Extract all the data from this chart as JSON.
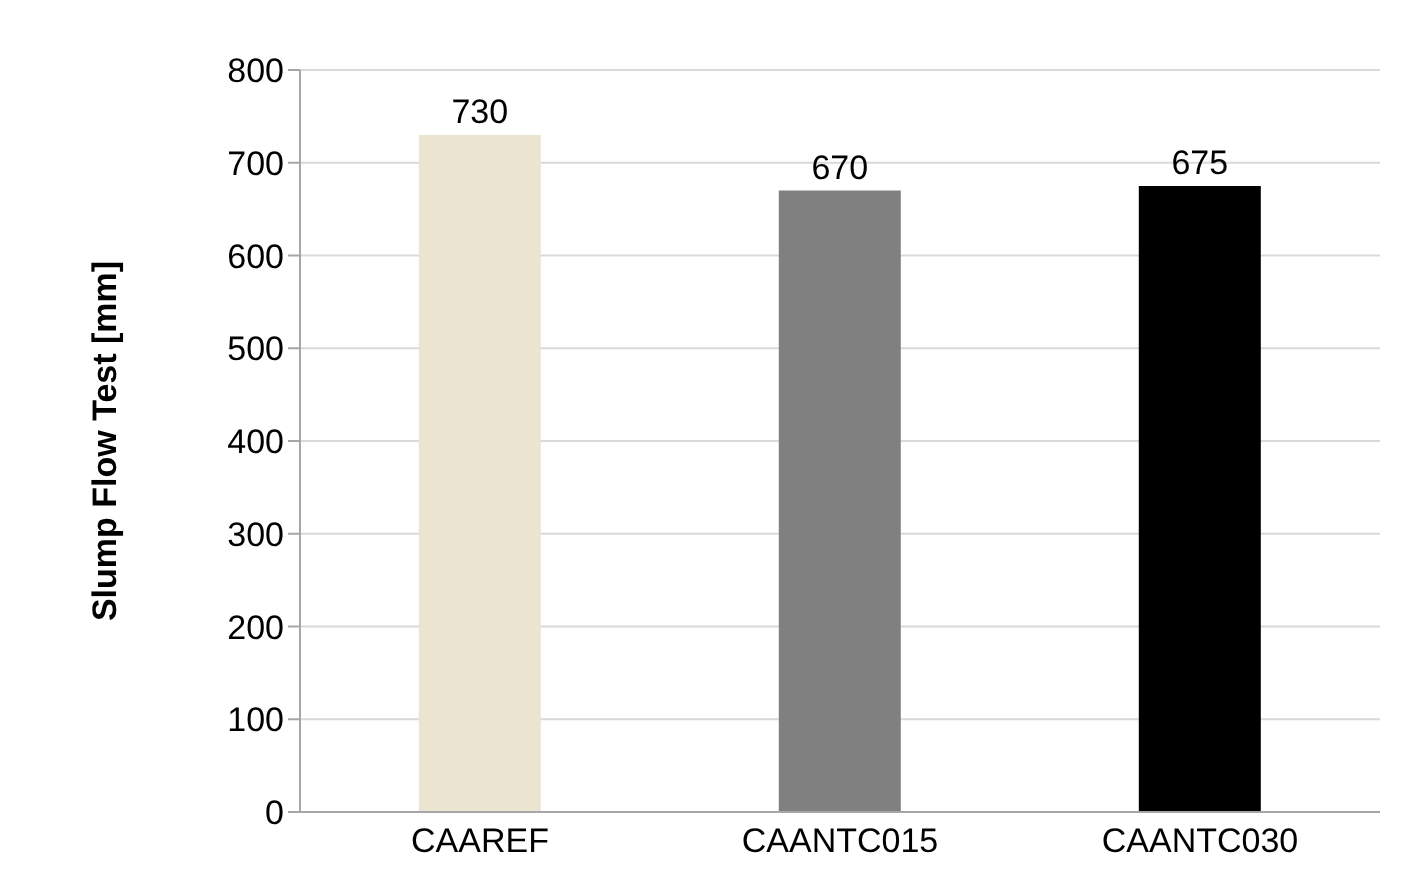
{
  "chart_data": {
    "type": "bar",
    "ylabel": "Slump Flow Test [mm]",
    "categories": [
      "CAAREF",
      "CAANTC015",
      "CAANTC030"
    ],
    "values": [
      730,
      670,
      675
    ],
    "colors": [
      "#ebe4d0",
      "#808080",
      "#000000"
    ],
    "ylim": [
      0,
      800
    ],
    "yticks": [
      0,
      100,
      200,
      300,
      400,
      500,
      600,
      700,
      800
    ],
    "grid": "y",
    "data_labels": true,
    "legend": false
  }
}
